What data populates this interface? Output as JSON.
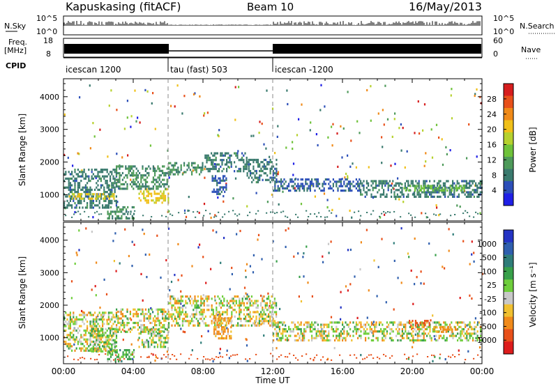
{
  "header": {
    "station": "Kapuskasing (fitACF)",
    "beam": "Beam 10",
    "date": "16/May/2013"
  },
  "strips": {
    "nsky_label": "N.Sky",
    "nsky_ticks": [
      "10^5",
      "10^0"
    ],
    "nsearch_label": "N.Search",
    "nsearch_ticks": [
      "10^5",
      "10^0"
    ],
    "freq_label_1": "Freq.",
    "freq_label_2": "[MHz]",
    "freq_ticks": [
      "18",
      "8"
    ],
    "nave_label": "Nave",
    "nave_ticks": [
      "60",
      "0"
    ],
    "cpid_label": "CPID",
    "cpid_segments": [
      {
        "label": "icescan 1200",
        "start": 0,
        "end": 6
      },
      {
        "label": "tau (fast) 503",
        "start": 6,
        "end": 12
      },
      {
        "label": "icescan -1200",
        "start": 12,
        "end": 24
      }
    ]
  },
  "axes": {
    "xlabel": "Time UT",
    "xticks": [
      "00:00",
      "04:00",
      "08:00",
      "12:00",
      "16:00",
      "20:00",
      "00:00"
    ],
    "ylabel": "Slant Range [km]",
    "yticks": [
      "1000",
      "2000",
      "3000",
      "4000"
    ]
  },
  "colorbars": {
    "power": {
      "label": "Power [dB]",
      "ticks": [
        "4",
        "8",
        "12",
        "16",
        "20",
        "24",
        "28"
      ],
      "colors": [
        "#1f1fe6",
        "#2c4fb8",
        "#3a7a6e",
        "#4e9a5a",
        "#6fc23a",
        "#b6d12e",
        "#f0c019",
        "#f08a18",
        "#e8501a",
        "#d61d1d"
      ]
    },
    "velocity": {
      "label": "Velocity [m s⁻¹]",
      "ticks": [
        "1000",
        "500",
        "100",
        "25",
        "-25",
        "-100",
        "-500",
        "-1000"
      ],
      "colors": [
        "#2433c4",
        "#2f5fae",
        "#2f7d79",
        "#38a04a",
        "#6fce3c",
        "#c8c8c8",
        "#f0c030",
        "#f08a1a",
        "#e8501a",
        "#dd1c1c"
      ]
    }
  },
  "chart_data": [
    {
      "type": "heatmap",
      "title": "Power",
      "xlabel": "Time UT",
      "ylabel": "Slant Range [km]",
      "xlim": [
        0,
        24
      ],
      "ylim": [
        200,
        4550
      ],
      "colorbar_label": "Power [dB]",
      "colorbar_range": [
        0,
        32
      ],
      "regions": [
        {
          "t0": 0.0,
          "t1": 3.0,
          "r0": 600,
          "r1": 1800,
          "level": 8
        },
        {
          "t0": 0.3,
          "t1": 2.9,
          "r0": 850,
          "r1": 1050,
          "level": 20
        },
        {
          "t0": 2.5,
          "t1": 4.0,
          "r0": 250,
          "r1": 650,
          "level": 10
        },
        {
          "t0": 4.3,
          "t1": 6.0,
          "r0": 750,
          "r1": 1200,
          "level": 20
        },
        {
          "t0": 3.0,
          "t1": 6.0,
          "r0": 1200,
          "r1": 1900,
          "level": 10
        },
        {
          "t0": 6.0,
          "t1": 8.0,
          "r0": 1600,
          "r1": 2000,
          "level": 10
        },
        {
          "t0": 8.0,
          "t1": 10.5,
          "r0": 1700,
          "r1": 2300,
          "level": 8
        },
        {
          "t0": 8.5,
          "t1": 9.3,
          "r0": 1000,
          "r1": 1600,
          "level": 6
        },
        {
          "t0": 10.5,
          "t1": 12.2,
          "r0": 1400,
          "r1": 2100,
          "level": 8
        },
        {
          "t0": 12.0,
          "t1": 17.0,
          "r0": 1100,
          "r1": 1500,
          "level": 6
        },
        {
          "t0": 17.0,
          "t1": 24.0,
          "r0": 950,
          "r1": 1450,
          "level": 8
        },
        {
          "t0": 19.5,
          "t1": 23.0,
          "r0": 1100,
          "r1": 1300,
          "level": 14
        }
      ]
    },
    {
      "type": "heatmap",
      "title": "Velocity",
      "xlabel": "Time UT",
      "ylabel": "Slant Range [km]",
      "xlim": [
        0,
        24
      ],
      "ylim": [
        200,
        4550
      ],
      "colorbar_label": "Velocity [m s⁻¹]",
      "colorbar_range": [
        -1200,
        1200
      ],
      "regions": [
        {
          "t0": 0.0,
          "t1": 3.0,
          "r0": 600,
          "r1": 1800,
          "level": 0
        },
        {
          "t0": 1.5,
          "t1": 3.0,
          "r0": 550,
          "r1": 1300,
          "level": 60
        },
        {
          "t0": 2.5,
          "t1": 4.0,
          "r0": 250,
          "r1": 650,
          "level": 120
        },
        {
          "t0": 4.3,
          "t1": 6.0,
          "r0": 700,
          "r1": 1300,
          "level": 60
        },
        {
          "t0": 3.0,
          "t1": 6.0,
          "r0": 1200,
          "r1": 1900,
          "level": 0
        },
        {
          "t0": 6.0,
          "t1": 12.2,
          "r0": 1400,
          "r1": 2300,
          "level": 0
        },
        {
          "t0": 8.6,
          "t1": 9.6,
          "r0": 1000,
          "r1": 1700,
          "level": -150
        },
        {
          "t0": 12.0,
          "t1": 24.0,
          "r0": 950,
          "r1": 1500,
          "level": 0
        },
        {
          "t0": 19.8,
          "t1": 21.0,
          "r0": 1350,
          "r1": 1550,
          "level": -700
        },
        {
          "t0": 21.2,
          "t1": 22.6,
          "r0": 1150,
          "r1": 1350,
          "level": -150
        }
      ]
    }
  ]
}
